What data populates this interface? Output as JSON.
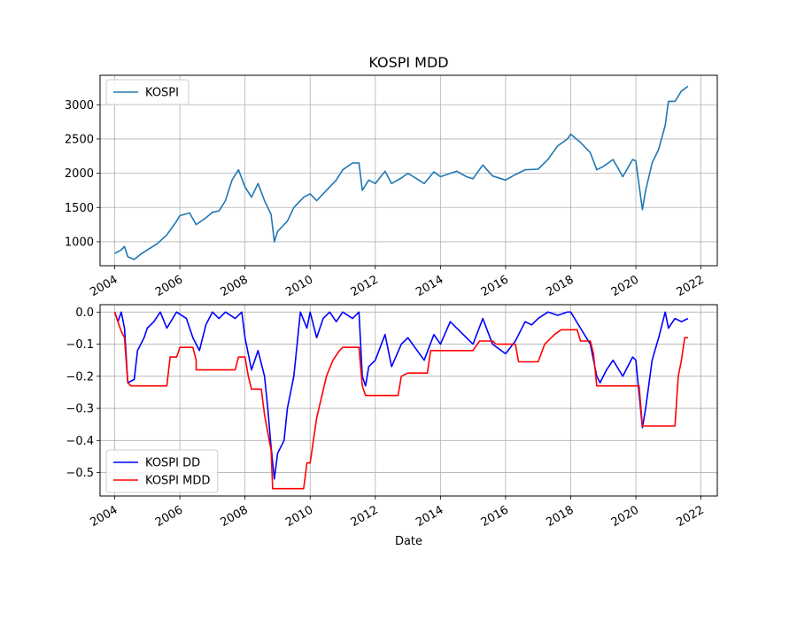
{
  "chart_data": [
    {
      "type": "line",
      "title": "KOSPI MDD",
      "xlabel": "",
      "ylabel": "",
      "xlim": [
        2003.55,
        2022.5
      ],
      "ylim": [
        650,
        3430
      ],
      "xticks": [
        "2004",
        "2006",
        "2008",
        "2010",
        "2012",
        "2014",
        "2016",
        "2018",
        "2020",
        "2022"
      ],
      "yticks": [
        1000,
        1500,
        2000,
        2500,
        3000
      ],
      "grid": true,
      "legend": "upper-left",
      "series": [
        {
          "name": "KOSPI",
          "color": "#1f77b4",
          "points": [
            [
              2004.0,
              830
            ],
            [
              2004.2,
              880
            ],
            [
              2004.3,
              930
            ],
            [
              2004.4,
              780
            ],
            [
              2004.6,
              740
            ],
            [
              2004.8,
              820
            ],
            [
              2005.0,
              880
            ],
            [
              2005.3,
              970
            ],
            [
              2005.6,
              1100
            ],
            [
              2005.9,
              1300
            ],
            [
              2006.0,
              1380
            ],
            [
              2006.3,
              1420
            ],
            [
              2006.5,
              1250
            ],
            [
              2006.8,
              1350
            ],
            [
              2007.0,
              1430
            ],
            [
              2007.2,
              1450
            ],
            [
              2007.4,
              1600
            ],
            [
              2007.6,
              1900
            ],
            [
              2007.8,
              2050
            ],
            [
              2008.0,
              1800
            ],
            [
              2008.2,
              1650
            ],
            [
              2008.4,
              1850
            ],
            [
              2008.6,
              1600
            ],
            [
              2008.8,
              1400
            ],
            [
              2008.9,
              1000
            ],
            [
              2009.0,
              1150
            ],
            [
              2009.3,
              1300
            ],
            [
              2009.5,
              1500
            ],
            [
              2009.8,
              1650
            ],
            [
              2010.0,
              1700
            ],
            [
              2010.2,
              1600
            ],
            [
              2010.5,
              1750
            ],
            [
              2010.8,
              1900
            ],
            [
              2011.0,
              2050
            ],
            [
              2011.3,
              2150
            ],
            [
              2011.5,
              2150
            ],
            [
              2011.6,
              1750
            ],
            [
              2011.8,
              1900
            ],
            [
              2012.0,
              1850
            ],
            [
              2012.3,
              2030
            ],
            [
              2012.5,
              1850
            ],
            [
              2012.8,
              1930
            ],
            [
              2013.0,
              2000
            ],
            [
              2013.5,
              1850
            ],
            [
              2013.8,
              2020
            ],
            [
              2014.0,
              1950
            ],
            [
              2014.5,
              2030
            ],
            [
              2014.8,
              1950
            ],
            [
              2015.0,
              1920
            ],
            [
              2015.3,
              2120
            ],
            [
              2015.6,
              1960
            ],
            [
              2016.0,
              1900
            ],
            [
              2016.3,
              1980
            ],
            [
              2016.6,
              2050
            ],
            [
              2017.0,
              2060
            ],
            [
              2017.3,
              2200
            ],
            [
              2017.6,
              2400
            ],
            [
              2017.9,
              2500
            ],
            [
              2018.0,
              2570
            ],
            [
              2018.3,
              2450
            ],
            [
              2018.6,
              2300
            ],
            [
              2018.8,
              2050
            ],
            [
              2019.0,
              2100
            ],
            [
              2019.3,
              2200
            ],
            [
              2019.6,
              1950
            ],
            [
              2019.9,
              2200
            ],
            [
              2020.0,
              2180
            ],
            [
              2020.2,
              1470
            ],
            [
              2020.3,
              1750
            ],
            [
              2020.5,
              2150
            ],
            [
              2020.7,
              2350
            ],
            [
              2020.9,
              2700
            ],
            [
              2021.0,
              3050
            ],
            [
              2021.2,
              3050
            ],
            [
              2021.4,
              3200
            ],
            [
              2021.6,
              3270
            ]
          ]
        }
      ]
    },
    {
      "type": "line",
      "title": "",
      "xlabel": "Date",
      "ylabel": "",
      "xlim": [
        2003.55,
        2022.5
      ],
      "ylim": [
        -0.573,
        0.023
      ],
      "xticks": [
        "2004",
        "2006",
        "2008",
        "2010",
        "2012",
        "2014",
        "2016",
        "2018",
        "2020",
        "2022"
      ],
      "yticks": [
        "0.0",
        "−0.1",
        "−0.2",
        "−0.3",
        "−0.4",
        "−0.5"
      ],
      "grid": true,
      "legend": "lower-left",
      "series": [
        {
          "name": "KOSPI DD",
          "color": "#0000ff",
          "points": [
            [
              2004.0,
              0.0
            ],
            [
              2004.1,
              -0.03
            ],
            [
              2004.2,
              0.0
            ],
            [
              2004.3,
              -0.05
            ],
            [
              2004.4,
              -0.22
            ],
            [
              2004.6,
              -0.21
            ],
            [
              2004.7,
              -0.12
            ],
            [
              2004.9,
              -0.08
            ],
            [
              2005.0,
              -0.05
            ],
            [
              2005.2,
              -0.03
            ],
            [
              2005.4,
              0.0
            ],
            [
              2005.6,
              -0.05
            ],
            [
              2005.9,
              0.0
            ],
            [
              2006.2,
              -0.02
            ],
            [
              2006.4,
              -0.08
            ],
            [
              2006.6,
              -0.12
            ],
            [
              2006.8,
              -0.04
            ],
            [
              2007.0,
              0.0
            ],
            [
              2007.2,
              -0.02
            ],
            [
              2007.4,
              0.0
            ],
            [
              2007.7,
              -0.02
            ],
            [
              2007.9,
              0.0
            ],
            [
              2008.0,
              -0.08
            ],
            [
              2008.2,
              -0.18
            ],
            [
              2008.4,
              -0.12
            ],
            [
              2008.6,
              -0.2
            ],
            [
              2008.7,
              -0.3
            ],
            [
              2008.8,
              -0.42
            ],
            [
              2008.9,
              -0.52
            ],
            [
              2009.0,
              -0.44
            ],
            [
              2009.2,
              -0.4
            ],
            [
              2009.3,
              -0.3
            ],
            [
              2009.5,
              -0.2
            ],
            [
              2009.6,
              -0.1
            ],
            [
              2009.7,
              0.0
            ],
            [
              2009.9,
              -0.05
            ],
            [
              2010.0,
              0.0
            ],
            [
              2010.2,
              -0.08
            ],
            [
              2010.4,
              -0.02
            ],
            [
              2010.6,
              0.0
            ],
            [
              2010.8,
              -0.03
            ],
            [
              2011.0,
              0.0
            ],
            [
              2011.3,
              -0.02
            ],
            [
              2011.5,
              0.0
            ],
            [
              2011.6,
              -0.2
            ],
            [
              2011.7,
              -0.23
            ],
            [
              2011.8,
              -0.17
            ],
            [
              2012.0,
              -0.15
            ],
            [
              2012.3,
              -0.07
            ],
            [
              2012.5,
              -0.17
            ],
            [
              2012.8,
              -0.1
            ],
            [
              2013.0,
              -0.08
            ],
            [
              2013.5,
              -0.15
            ],
            [
              2013.8,
              -0.07
            ],
            [
              2014.0,
              -0.1
            ],
            [
              2014.3,
              -0.03
            ],
            [
              2014.6,
              -0.06
            ],
            [
              2015.0,
              -0.1
            ],
            [
              2015.3,
              -0.02
            ],
            [
              2015.6,
              -0.1
            ],
            [
              2016.0,
              -0.13
            ],
            [
              2016.3,
              -0.09
            ],
            [
              2016.6,
              -0.03
            ],
            [
              2016.8,
              -0.04
            ],
            [
              2017.0,
              -0.02
            ],
            [
              2017.3,
              0.0
            ],
            [
              2017.6,
              -0.01
            ],
            [
              2017.9,
              0.0
            ],
            [
              2018.0,
              0.0
            ],
            [
              2018.3,
              -0.05
            ],
            [
              2018.6,
              -0.1
            ],
            [
              2018.8,
              -0.2
            ],
            [
              2018.9,
              -0.22
            ],
            [
              2019.1,
              -0.18
            ],
            [
              2019.3,
              -0.15
            ],
            [
              2019.6,
              -0.2
            ],
            [
              2019.9,
              -0.14
            ],
            [
              2020.0,
              -0.15
            ],
            [
              2020.2,
              -0.36
            ],
            [
              2020.3,
              -0.3
            ],
            [
              2020.5,
              -0.15
            ],
            [
              2020.7,
              -0.08
            ],
            [
              2020.9,
              0.0
            ],
            [
              2021.0,
              -0.05
            ],
            [
              2021.2,
              -0.02
            ],
            [
              2021.4,
              -0.03
            ],
            [
              2021.6,
              -0.02
            ]
          ]
        },
        {
          "name": "KOSPI MDD",
          "color": "#ff0000",
          "points": [
            [
              2004.0,
              0.0
            ],
            [
              2004.1,
              -0.03
            ],
            [
              2004.2,
              -0.06
            ],
            [
              2004.3,
              -0.08
            ],
            [
              2004.35,
              -0.15
            ],
            [
              2004.4,
              -0.22
            ],
            [
              2004.5,
              -0.23
            ],
            [
              2005.6,
              -0.23
            ],
            [
              2005.7,
              -0.14
            ],
            [
              2005.9,
              -0.14
            ],
            [
              2006.0,
              -0.11
            ],
            [
              2006.4,
              -0.11
            ],
            [
              2006.5,
              -0.15
            ],
            [
              2006.5,
              -0.18
            ],
            [
              2007.7,
              -0.18
            ],
            [
              2007.8,
              -0.14
            ],
            [
              2008.0,
              -0.14
            ],
            [
              2008.1,
              -0.2
            ],
            [
              2008.2,
              -0.24
            ],
            [
              2008.5,
              -0.24
            ],
            [
              2008.6,
              -0.32
            ],
            [
              2008.8,
              -0.43
            ],
            [
              2008.85,
              -0.55
            ],
            [
              2009.8,
              -0.55
            ],
            [
              2009.9,
              -0.47
            ],
            [
              2010.0,
              -0.47
            ],
            [
              2010.2,
              -0.33
            ],
            [
              2010.5,
              -0.2
            ],
            [
              2010.7,
              -0.15
            ],
            [
              2010.9,
              -0.12
            ],
            [
              2011.0,
              -0.11
            ],
            [
              2011.5,
              -0.11
            ],
            [
              2011.6,
              -0.23
            ],
            [
              2011.7,
              -0.26
            ],
            [
              2012.7,
              -0.26
            ],
            [
              2012.8,
              -0.2
            ],
            [
              2013.0,
              -0.19
            ],
            [
              2013.6,
              -0.19
            ],
            [
              2013.7,
              -0.12
            ],
            [
              2014.0,
              -0.12
            ],
            [
              2015.0,
              -0.12
            ],
            [
              2015.2,
              -0.09
            ],
            [
              2015.6,
              -0.09
            ],
            [
              2015.7,
              -0.1
            ],
            [
              2016.3,
              -0.1
            ],
            [
              2016.4,
              -0.155
            ],
            [
              2017.0,
              -0.155
            ],
            [
              2017.2,
              -0.1
            ],
            [
              2017.5,
              -0.07
            ],
            [
              2017.7,
              -0.055
            ],
            [
              2018.2,
              -0.055
            ],
            [
              2018.3,
              -0.09
            ],
            [
              2018.6,
              -0.09
            ],
            [
              2018.7,
              -0.13
            ],
            [
              2018.8,
              -0.23
            ],
            [
              2020.1,
              -0.23
            ],
            [
              2020.2,
              -0.355
            ],
            [
              2021.2,
              -0.355
            ],
            [
              2021.3,
              -0.2
            ],
            [
              2021.4,
              -0.15
            ],
            [
              2021.5,
              -0.08
            ],
            [
              2021.6,
              -0.08
            ]
          ]
        }
      ]
    }
  ]
}
